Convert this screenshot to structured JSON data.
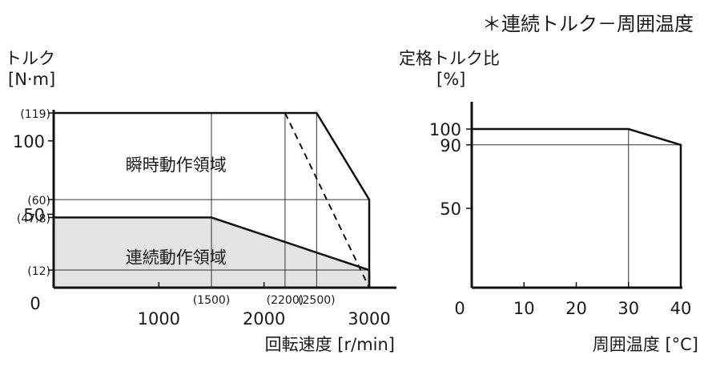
{
  "header": {
    "note": "＊連続トルク－周囲温度"
  },
  "chart_data": [
    {
      "type": "area",
      "title": "",
      "ylabel_lines": [
        "トルク",
        "[N·m]"
      ],
      "xlabel": "回転速度 [r/min]",
      "xlim": [
        0,
        3000
      ],
      "ylim": [
        0,
        119
      ],
      "x_ticks": [
        {
          "value": 1000,
          "label": "1000"
        },
        {
          "value": 2000,
          "label": "2000"
        },
        {
          "value": 3000,
          "label": "3000"
        }
      ],
      "x_paren_ticks": [
        {
          "value": 1500,
          "label": "(1500)"
        },
        {
          "value": 2200,
          "label": "(2200)"
        },
        {
          "value": 2500,
          "label": "(2500)"
        }
      ],
      "y_ticks": [
        {
          "value": 100,
          "label": "100"
        },
        {
          "value": 50,
          "label": "50"
        }
      ],
      "y_paren_ticks": [
        {
          "value": 119,
          "label": "(119)"
        },
        {
          "value": 60,
          "label": "(60)"
        },
        {
          "value": 47.8,
          "label": "(47.8)"
        },
        {
          "value": 12,
          "label": "(12)"
        }
      ],
      "origin_label": "0",
      "v_grid": [
        1500,
        2200,
        2500
      ],
      "h_grid": [
        60,
        12
      ],
      "series": [
        {
          "label": "瞬時動作領域",
          "points": [
            [
              0,
              119
            ],
            [
              2500,
              119
            ],
            [
              3000,
              60
            ],
            [
              3000,
              0
            ]
          ]
        },
        {
          "label": "連続動作領域",
          "points": [
            [
              0,
              47.8
            ],
            [
              1500,
              47.8
            ],
            [
              3000,
              12
            ],
            [
              3000,
              0
            ]
          ]
        },
        {
          "points": [
            [
              2200,
              119
            ],
            [
              3000,
              0
            ]
          ],
          "style": "dashed"
        }
      ],
      "region_labels": [
        {
          "text": "瞬時動作領域",
          "x": 600,
          "y": 84
        },
        {
          "text": "連続動作領域",
          "x": 600,
          "y": 21
        }
      ],
      "grid": true
    },
    {
      "type": "line",
      "title": "",
      "ylabel_lines": [
        "定格トルク比",
        "[%]"
      ],
      "xlabel": "周囲温度 [°C]",
      "xlim": [
        0,
        40
      ],
      "ylim": [
        0,
        100
      ],
      "x_ticks": [
        {
          "value": 0,
          "label": "0"
        },
        {
          "value": 10,
          "label": "10"
        },
        {
          "value": 20,
          "label": "20"
        },
        {
          "value": 30,
          "label": "30"
        },
        {
          "value": 40,
          "label": "40"
        }
      ],
      "y_ticks": [
        {
          "value": 100,
          "label": "100"
        },
        {
          "value": 90,
          "label": "90"
        },
        {
          "value": 50,
          "label": "50"
        }
      ],
      "v_grid": [
        30
      ],
      "h_grid": [
        90
      ],
      "series": [
        {
          "points": [
            [
              0,
              100
            ],
            [
              30,
              100
            ],
            [
              40,
              90
            ],
            [
              40,
              0
            ]
          ]
        }
      ],
      "grid": true
    }
  ]
}
